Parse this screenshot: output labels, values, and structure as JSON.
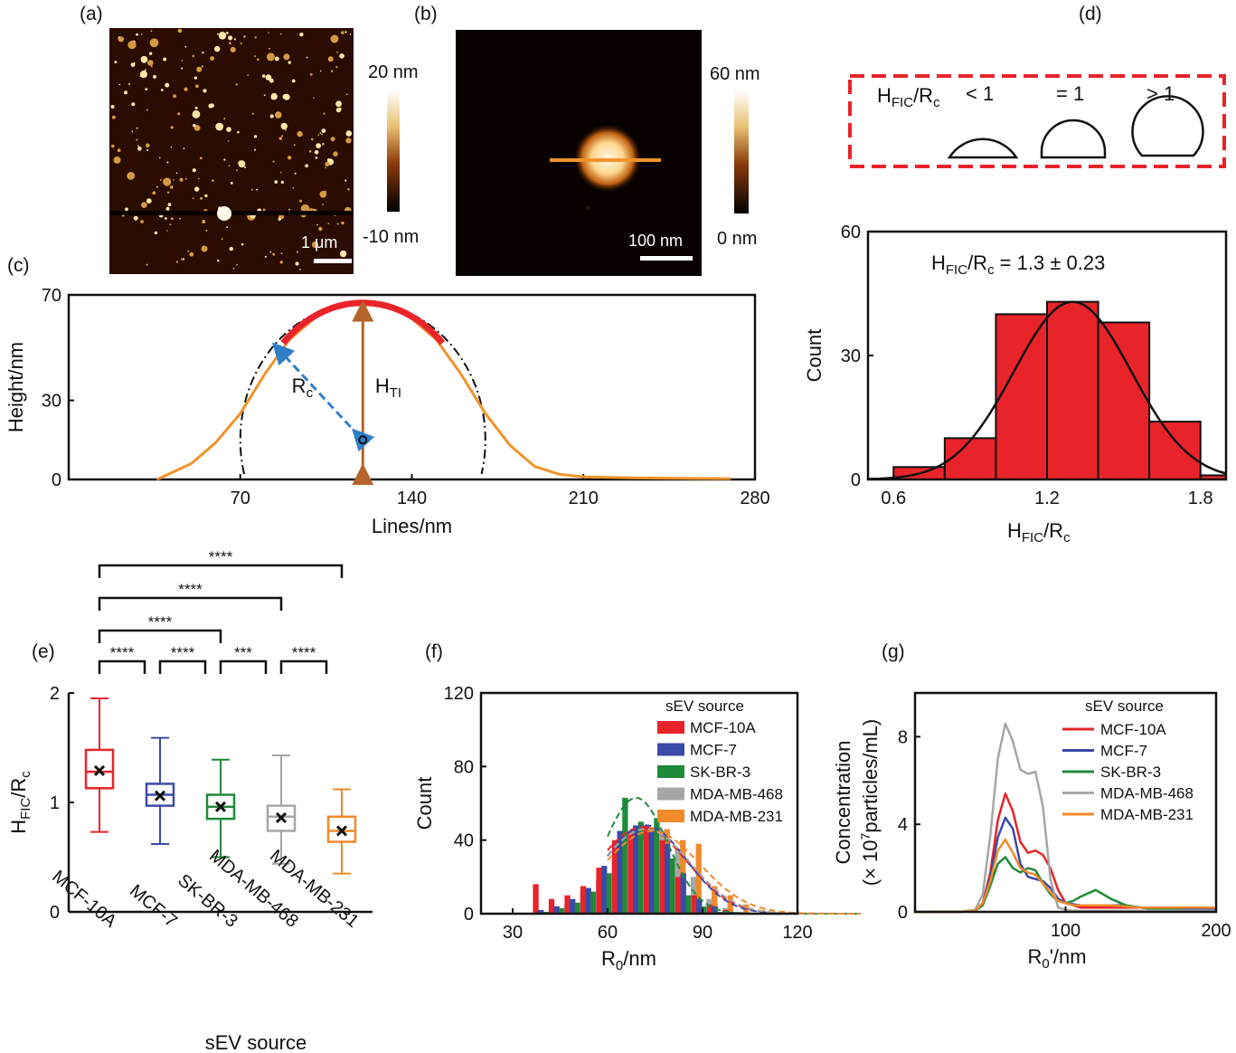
{
  "panels": {
    "a": {
      "label": "(a)",
      "scale_top": "20 nm",
      "scale_bottom": "-10 nm",
      "scalebar": "1 μm"
    },
    "b": {
      "label": "(b)",
      "scale_top": "60 nm",
      "scale_bottom": "0 nm",
      "scalebar": "100 nm"
    },
    "c": {
      "label": "(c)"
    },
    "d": {
      "label": "(d)",
      "box_ratio": "H",
      "box_sub": "FIC",
      "box_den": "/R",
      "box_den_sub": "c",
      "lt": "< 1",
      "eq": "= 1",
      "gt": "> 1"
    },
    "e": {
      "label": "(e)"
    },
    "f": {
      "label": "(f)"
    },
    "g": {
      "label": "(g)"
    }
  },
  "colors": {
    "red": "#e8242a",
    "blue": "#3a4aa8",
    "green": "#1f8a3a",
    "gray": "#a6a6a6",
    "orange": "#f08a2a",
    "profile": "#f0932b",
    "arrow_brown": "#b5652a",
    "arrow_blue": "#2f7fc8",
    "box_dash": "#e8242a"
  },
  "chart_data": [
    {
      "id": "c",
      "type": "line",
      "xlabel": "Lines/nm",
      "ylabel": "Height/nm",
      "xlim": [
        0,
        280
      ],
      "ylim": [
        0,
        70
      ],
      "xticks": [
        70,
        140,
        210,
        280
      ],
      "yticks": [
        0,
        30,
        70
      ],
      "annotations": {
        "rc": "R",
        "rc_sub": "c",
        "hti": "H",
        "hti_sub": "TI"
      },
      "series": [
        {
          "x": [
            36,
            50,
            60,
            70,
            80,
            90,
            100,
            110,
            120,
            130,
            140,
            150,
            160,
            170,
            180,
            190,
            200,
            210,
            230,
            250,
            270
          ],
          "y": [
            0,
            6,
            14,
            25,
            40,
            53,
            61,
            66,
            67,
            66,
            61,
            53,
            40,
            25,
            13,
            5,
            2,
            1,
            0.6,
            0.4,
            0.3
          ]
        }
      ]
    },
    {
      "id": "d",
      "type": "bar",
      "xlabel": "H",
      "xlabel_sub": "FIC",
      "xlabel_rest": "/R",
      "xlabel_sub2": "c",
      "ylabel": "Count",
      "xlim": [
        0.5,
        1.9
      ],
      "ylim": [
        0,
        60
      ],
      "xticks": [
        0.6,
        1.2,
        1.8
      ],
      "yticks": [
        0,
        30,
        60
      ],
      "annotation": "H",
      "annotation_sub": "FIC",
      "annotation_rest": "/R",
      "annotation_sub2": "c",
      "annotation_value": " = 1.3 ± 0.23",
      "bins": [
        [
          0.5,
          0.6
        ],
        [
          0.6,
          0.8
        ],
        [
          0.8,
          1.0
        ],
        [
          1.0,
          1.2
        ],
        [
          1.2,
          1.4
        ],
        [
          1.4,
          1.6
        ],
        [
          1.6,
          1.8
        ],
        [
          1.8,
          2.0
        ]
      ],
      "values": [
        0,
        3,
        10,
        40,
        43,
        38,
        14,
        1
      ],
      "fit": {
        "mean": 1.3,
        "sd": 0.23,
        "peak": 43
      }
    },
    {
      "id": "e",
      "type": "box",
      "xlabel": "sEV source",
      "ylabel": "H",
      "ylabel_sub": "FIC",
      "ylabel_rest": "/R",
      "ylabel_sub2": "c",
      "ylim": [
        0,
        2
      ],
      "yticks": [
        0,
        1,
        2
      ],
      "categories": [
        "MCF-10A",
        "MCF-7",
        "SK-BR-3",
        "MDA-MB-468",
        "MDA-MB-231"
      ],
      "boxes": [
        {
          "min": 0.73,
          "q1": 1.13,
          "median": 1.28,
          "q3": 1.48,
          "max": 1.95,
          "mean": 1.29
        },
        {
          "min": 0.62,
          "q1": 0.97,
          "median": 1.07,
          "q3": 1.17,
          "max": 1.59,
          "mean": 1.06
        },
        {
          "min": 0.5,
          "q1": 0.85,
          "median": 0.96,
          "q3": 1.07,
          "max": 1.39,
          "mean": 0.96
        },
        {
          "min": 0.44,
          "q1": 0.74,
          "median": 0.87,
          "q3": 0.97,
          "max": 1.43,
          "mean": 0.86
        },
        {
          "min": 0.35,
          "q1": 0.64,
          "median": 0.74,
          "q3": 0.87,
          "max": 1.12,
          "mean": 0.74
        }
      ],
      "significance": [
        {
          "from": 0,
          "to": 1,
          "text": "****",
          "level": 0
        },
        {
          "from": 1,
          "to": 2,
          "text": "****",
          "level": 0
        },
        {
          "from": 2,
          "to": 3,
          "text": "***",
          "level": 0
        },
        {
          "from": 3,
          "to": 4,
          "text": "****",
          "level": 0
        },
        {
          "from": 0,
          "to": 2,
          "text": "****",
          "level": 1
        },
        {
          "from": 0,
          "to": 3,
          "text": "****",
          "level": 2
        },
        {
          "from": 0,
          "to": 4,
          "text": "****",
          "level": 3
        }
      ]
    },
    {
      "id": "f",
      "type": "bar",
      "xlabel": "R",
      "xlabel_sub": "0",
      "xlabel_rest": "/nm",
      "ylabel": "Count",
      "xlim": [
        20,
        120
      ],
      "ylim": [
        0,
        120
      ],
      "xticks": [
        30,
        60,
        90,
        120
      ],
      "yticks": [
        0,
        40,
        80,
        120
      ],
      "legend_title": "sEV source",
      "centers": [
        40,
        45,
        50,
        55,
        60,
        65,
        70,
        75,
        80,
        85,
        90,
        95,
        100,
        105
      ],
      "series": [
        {
          "name": "MCF-10A",
          "values": [
            16,
            8,
            10,
            15,
            25,
            40,
            45,
            48,
            40,
            20,
            10,
            5,
            2,
            0
          ],
          "mu": 71,
          "sd": 14,
          "peak": 47
        },
        {
          "name": "MCF-7",
          "values": [
            2,
            4,
            8,
            14,
            26,
            45,
            48,
            46,
            38,
            22,
            8,
            4,
            1,
            0
          ],
          "mu": 72,
          "sd": 13,
          "peak": 48
        },
        {
          "name": "SK-BR-3",
          "values": [
            1,
            3,
            6,
            12,
            22,
            63,
            50,
            52,
            30,
            10,
            4,
            1,
            0,
            0
          ],
          "mu": 69,
          "sd": 10,
          "peak": 63
        },
        {
          "name": "MDA-MB-468",
          "values": [
            2,
            5,
            12,
            18,
            30,
            45,
            40,
            45,
            35,
            20,
            8,
            3,
            1,
            0
          ],
          "mu": 72,
          "sd": 14,
          "peak": 46
        },
        {
          "name": "MDA-MB-231",
          "values": [
            3,
            6,
            10,
            15,
            25,
            45,
            47,
            46,
            40,
            38,
            15,
            10,
            5,
            2
          ],
          "mu": 74,
          "sd": 15,
          "peak": 45
        }
      ]
    },
    {
      "id": "g",
      "type": "line",
      "xlabel": "R",
      "xlabel_sub": "0",
      "xlabel_rest": "'/nm",
      "ylabel_line1": "Concentration",
      "ylabel_line2a": "(× 10",
      "ylabel_sup": "7",
      "ylabel_line2b": "particles/mL)",
      "xlim": [
        0,
        200
      ],
      "ylim": [
        0,
        10
      ],
      "xticks": [
        100,
        200
      ],
      "yticks": [
        0,
        4,
        8
      ],
      "legend_title": "sEV source",
      "x": [
        0,
        20,
        30,
        40,
        45,
        50,
        55,
        60,
        65,
        70,
        75,
        80,
        85,
        90,
        95,
        100,
        105,
        110,
        120,
        130,
        140,
        150,
        160,
        170,
        180,
        190,
        200
      ],
      "series": [
        {
          "name": "MCF-10A",
          "y": [
            0,
            0,
            0,
            0.05,
            0.4,
            1.8,
            4.2,
            5.4,
            4.6,
            3.2,
            2.7,
            2.8,
            2.6,
            2.0,
            1.0,
            0.4,
            0.3,
            0.2,
            0.2,
            0.2,
            0.2,
            0.2,
            0.15,
            0.1,
            0.1,
            0.1,
            0.1
          ]
        },
        {
          "name": "MCF-7",
          "y": [
            0,
            0,
            0,
            0.05,
            0.4,
            1.6,
            3.4,
            4.3,
            3.8,
            2.2,
            1.6,
            1.5,
            1.4,
            1.1,
            0.6,
            0.4,
            0.35,
            0.3,
            0.3,
            0.3,
            0.3,
            0.2,
            0.15,
            0.1,
            0.1,
            0.1,
            0.1
          ]
        },
        {
          "name": "SK-BR-3",
          "y": [
            0,
            0,
            0,
            0.05,
            0.3,
            1.2,
            2.2,
            2.5,
            2.0,
            1.8,
            2.0,
            1.9,
            1.3,
            0.8,
            0.5,
            0.4,
            0.5,
            0.7,
            1.0,
            0.6,
            0.3,
            0.2,
            0.1,
            0.1,
            0.05,
            0.05,
            0.05
          ]
        },
        {
          "name": "MDA-MB-468",
          "y": [
            0,
            0,
            0,
            0.1,
            0.8,
            3.5,
            7.0,
            8.6,
            7.8,
            6.5,
            6.3,
            6.4,
            4.8,
            1.5,
            0.2,
            0.1,
            0.05,
            0.05,
            0.05,
            0.05,
            0.05,
            0.05,
            0.05,
            0.05,
            0.05,
            0.05,
            0.05
          ]
        },
        {
          "name": "MDA-MB-231",
          "y": [
            0,
            0,
            0,
            0.05,
            0.4,
            1.4,
            2.8,
            3.3,
            2.7,
            2.0,
            1.8,
            1.7,
            1.3,
            0.9,
            0.5,
            0.4,
            0.3,
            0.3,
            0.3,
            0.3,
            0.25,
            0.2,
            0.2,
            0.2,
            0.2,
            0.2,
            0.2
          ]
        }
      ]
    }
  ]
}
